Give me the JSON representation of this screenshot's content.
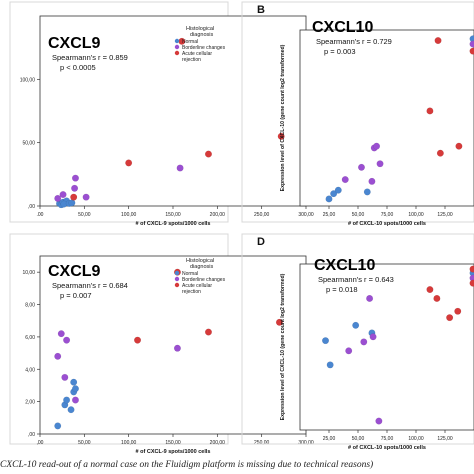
{
  "caption": "CXCL-10 read-out of a normal case on the Fluidigm platform is missing due to technical reasons)",
  "legend": {
    "title_line1": "Histological",
    "title_line2": "diagnosis",
    "items": [
      {
        "label": "Normal",
        "color": "#4a86d0"
      },
      {
        "label": "Borderline changes",
        "color": "#9b4fd1"
      },
      {
        "label": "Acute cellular",
        "color": "#d63a3a"
      },
      {
        "label": "rejection",
        "color": ""
      }
    ]
  },
  "chart_data": [
    {
      "panel": "",
      "type": "scatter",
      "title": "CXCL9",
      "stat_line1": "Spearmann's r = 0.859",
      "stat_line2": "p < 0.0005",
      "xlabel": "# of CXCL-9 spots/1000 cells",
      "ylabel": "",
      "xlim": [
        0,
        300
      ],
      "ylim": [
        0,
        150
      ],
      "x_ticks": [
        ".00",
        "50,00",
        "100,00",
        "150,00",
        "200,00",
        "250,00",
        "300,00"
      ],
      "y_ticks": [
        ",00",
        "50,00",
        "100,00"
      ],
      "series": [
        {
          "name": "Normal",
          "color": "#4a86d0",
          "points": [
            [
              22,
              2
            ],
            [
              24,
              1
            ],
            [
              26,
              3
            ],
            [
              30,
              4
            ],
            [
              27,
              1.5
            ],
            [
              33,
              2
            ],
            [
              36,
              2.5
            ]
          ]
        },
        {
          "name": "Borderline changes",
          "color": "#9b4fd1",
          "points": [
            [
              20,
              6
            ],
            [
              26,
              9
            ],
            [
              39,
              14
            ],
            [
              40,
              22
            ],
            [
              52,
              7
            ],
            [
              158,
              30
            ]
          ]
        },
        {
          "name": "Acute cellular rejection",
          "color": "#d63a3a",
          "points": [
            [
              38,
              7
            ],
            [
              100,
              34
            ],
            [
              190,
              41
            ],
            [
              272,
              55
            ],
            [
              160,
              130
            ]
          ]
        }
      ]
    },
    {
      "panel": "B",
      "type": "scatter",
      "title": "CXCL10",
      "stat_line1": "Spearmann's r = 0.729",
      "stat_line2": "p = 0.003",
      "xlabel": "# of CXCL-10 spots/1000 cells",
      "ylabel": "Expression level of CXCL-10 (gene count log2 transformed)",
      "xlim": [
        0,
        150
      ],
      "ylim": [
        0,
        10
      ],
      "x_ticks": [
        "25,00",
        "50,00",
        "75,00",
        "100,00",
        "125,00"
      ],
      "y_ticks": [],
      "series": [
        {
          "name": "Normal",
          "color": "#4a86d0",
          "points": [
            [
              25,
              0.4
            ],
            [
              29,
              0.7
            ],
            [
              33,
              0.9
            ],
            [
              58,
              0.8
            ],
            [
              150,
              9.5
            ]
          ]
        },
        {
          "name": "Borderline changes",
          "color": "#9b4fd1",
          "points": [
            [
              39,
              1.5
            ],
            [
              53,
              2.2
            ],
            [
              62,
              1.4
            ],
            [
              64,
              3.3
            ],
            [
              66,
              3.4
            ],
            [
              69,
              2.4
            ],
            [
              150,
              9.2
            ]
          ]
        },
        {
          "name": "Acute cellular rejection",
          "color": "#d63a3a",
          "points": [
            [
              112,
              5.4
            ],
            [
              119,
              9.4
            ],
            [
              121,
              3.0
            ],
            [
              137,
              3.4
            ],
            [
              150,
              8.8
            ]
          ]
        }
      ]
    },
    {
      "panel": "",
      "type": "scatter",
      "title": "CXCL9",
      "stat_line1": "Spearmann's r = 0.684",
      "stat_line2": "p = 0.007",
      "xlabel": "# of CXCL-9 spots/1000 cells",
      "ylabel": "",
      "xlim": [
        0,
        300
      ],
      "ylim": [
        0,
        11
      ],
      "x_ticks": [
        ",00",
        "50,00",
        "100,00",
        "150,00",
        "200,00",
        "250,00",
        "300,00"
      ],
      "y_ticks": [
        ",00",
        "2,00",
        "4,00",
        "6,00",
        "8,00",
        "10,00"
      ],
      "series": [
        {
          "name": "Normal",
          "color": "#4a86d0",
          "points": [
            [
              20,
              0.5
            ],
            [
              28,
              1.8
            ],
            [
              30,
              2.1
            ],
            [
              35,
              1.5
            ],
            [
              38,
              2.6
            ],
            [
              38,
              3.2
            ],
            [
              40,
              2.8
            ]
          ]
        },
        {
          "name": "Borderline changes",
          "color": "#9b4fd1",
          "points": [
            [
              20,
              4.8
            ],
            [
              28,
              3.5
            ],
            [
              40,
              2.1
            ],
            [
              155,
              5.3
            ],
            [
              30,
              5.8
            ],
            [
              24,
              6.2
            ]
          ]
        },
        {
          "name": "Acute cellular rejection",
          "color": "#d63a3a",
          "points": [
            [
              110,
              5.8
            ],
            [
              190,
              6.3
            ],
            [
              270,
              6.9
            ],
            [
              155,
              10
            ]
          ]
        }
      ]
    },
    {
      "panel": "D",
      "type": "scatter",
      "title": "CXCL10",
      "stat_line1": "Spearmann's r = 0.643",
      "stat_line2": "p = 0.018",
      "xlabel": "# of CXCL-10 spots/1000 cells",
      "ylabel": "Expression level of CXCL-10 (gene count log2 transformed)",
      "xlim": [
        0,
        150
      ],
      "ylim": [
        -4,
        9
      ],
      "x_ticks": [
        "25,00",
        "50,00",
        "75,00",
        "100,00",
        "125,00"
      ],
      "y_ticks": [],
      "series": [
        {
          "name": "Normal",
          "color": "#4a86d0",
          "points": [
            [
              22,
              3
            ],
            [
              26,
              1.1
            ],
            [
              48,
              4.2
            ],
            [
              62,
              3.6
            ],
            [
              150,
              8.3
            ]
          ]
        },
        {
          "name": "Borderline changes",
          "color": "#9b4fd1",
          "points": [
            [
              42,
              2.2
            ],
            [
              55,
              2.9
            ],
            [
              60,
              6.3
            ],
            [
              63,
              3.3
            ],
            [
              68,
              -3.3
            ],
            [
              150,
              7.9
            ]
          ]
        },
        {
          "name": "Acute cellular rejection",
          "color": "#d63a3a",
          "points": [
            [
              112,
              7.0
            ],
            [
              118,
              6.3
            ],
            [
              129,
              4.8
            ],
            [
              136,
              5.3
            ],
            [
              150,
              8.6
            ],
            [
              150,
              7.5
            ]
          ]
        }
      ]
    }
  ]
}
